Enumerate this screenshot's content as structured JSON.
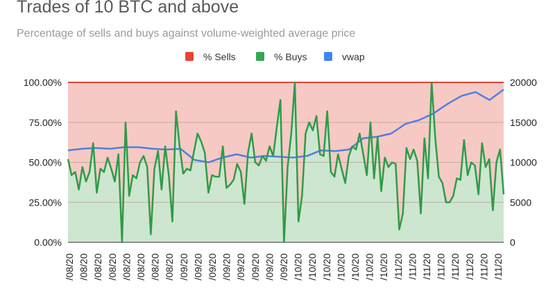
{
  "chart_data": {
    "type": "area",
    "title": "Trades of 10 BTC and above",
    "subtitle": "Percentage of sells and buys against volume-weighted average price",
    "legend": [
      {
        "label": "% Sells",
        "color": "#ea4335"
      },
      {
        "label": "% Buys",
        "color": "#34a853"
      },
      {
        "label": "vwap",
        "color": "#4285f4"
      }
    ],
    "legend_position": "top",
    "y_left": {
      "ticks": [
        "0.00%",
        "25.00%",
        "50.00%",
        "75.00%",
        "100.00%"
      ],
      "range": [
        0,
        100
      ]
    },
    "y_right": {
      "ticks": [
        "0",
        "5000",
        "10000",
        "15000",
        "20000"
      ],
      "range": [
        0,
        20000
      ]
    },
    "x_labels": [
      "/08/20",
      "/08/20",
      "/08/20",
      "/08/20",
      "/08/20",
      "/08/20",
      "/08/20",
      "/08/20",
      "/09/20",
      "/09/20",
      "/09/20",
      "/09/20",
      "/09/20",
      "/09/20",
      "/09/20",
      "/09/20",
      "/10/20",
      "/10/20",
      "/10/20",
      "/10/20",
      "/10/20",
      "/10/20",
      "/10/20",
      "/11/20",
      "/11/20",
      "/11/20",
      "/11/20",
      "/11/20",
      "/11/20",
      "/11/20",
      "/11/20"
    ],
    "grid": true,
    "series": [
      {
        "name": "% Buys",
        "axis": "left",
        "values": [
          52,
          42,
          44,
          33,
          47,
          38,
          44,
          62,
          31,
          46,
          44,
          53,
          46,
          38,
          55,
          0,
          75,
          29,
          42,
          40,
          50,
          54,
          47,
          5,
          46,
          57,
          33,
          60,
          42,
          13,
          82,
          60,
          43,
          46,
          45,
          57,
          68,
          63,
          56,
          31,
          42,
          41,
          41,
          60,
          34,
          36,
          39,
          49,
          44,
          24,
          56,
          68,
          50,
          48,
          54,
          51,
          60,
          54,
          72,
          89,
          0,
          47,
          68,
          100,
          13,
          29,
          68,
          75,
          70,
          79,
          55,
          54,
          82,
          44,
          41,
          55,
          46,
          37,
          54,
          60,
          58,
          68,
          55,
          42,
          75,
          40,
          66,
          32,
          53,
          47,
          50,
          49,
          8,
          18,
          59,
          52,
          58,
          51,
          18,
          65,
          40,
          100,
          65,
          41,
          37,
          25,
          25,
          29,
          40,
          39,
          64,
          42,
          50,
          48,
          30,
          62,
          47,
          52,
          20,
          50,
          58,
          30
        ]
      },
      {
        "name": "% Sells",
        "axis": "left",
        "note": "complement of % Buys (stacked to 100%)"
      },
      {
        "name": "vwap",
        "axis": "right",
        "values": [
          11500,
          11700,
          11800,
          11700,
          11900,
          11900,
          11700,
          11600,
          11700,
          10300,
          10000,
          10600,
          11000,
          10600,
          10800,
          10700,
          10600,
          10800,
          11500,
          11400,
          11600,
          13000,
          13200,
          13600,
          14800,
          15300,
          16100,
          17300,
          18300,
          18800,
          17800,
          19100
        ]
      }
    ]
  }
}
